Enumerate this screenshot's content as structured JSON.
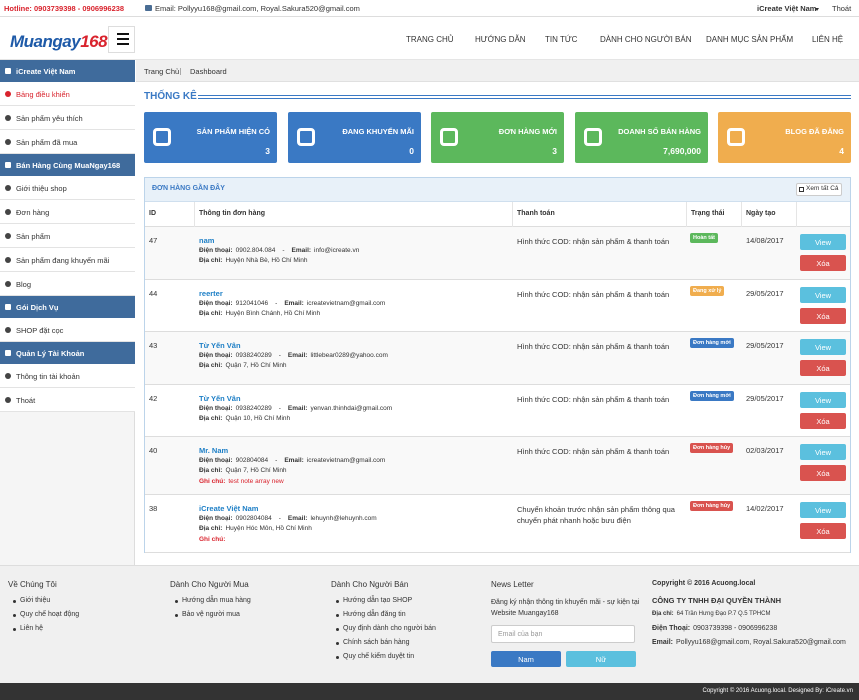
{
  "topbar": {
    "hotline": "Hotline: 0903739398 - 0906996238",
    "email": "Email: Pollyyu168@gmail.com, Royal.Sakura520@gmail.com",
    "account": "iCreate Việt Nam",
    "logout": "Thoát"
  },
  "header": {
    "logo": {
      "main": "Muangay",
      "accent": "168"
    },
    "nav": [
      "TRANG CHỦ",
      "HƯỚNG DẪN",
      "TIN TỨC",
      "DÀNH CHO NGƯỜI BÁN",
      "DANH MỤC SẢN PHẨM",
      "LIÊN HỆ"
    ]
  },
  "sidebar": [
    {
      "type": "header",
      "label": "iCreate Việt Nam"
    },
    {
      "type": "link",
      "label": "Bảng điều khiển",
      "active": true
    },
    {
      "type": "link",
      "label": "Sản phẩm yêu thích"
    },
    {
      "type": "link",
      "label": "Sản phẩm đã mua"
    },
    {
      "type": "header",
      "label": "Bán Hàng Cùng MuaNgay168"
    },
    {
      "type": "link",
      "label": "Giới thiệu shop"
    },
    {
      "type": "link",
      "label": "Đơn hàng"
    },
    {
      "type": "link",
      "label": "Sản phẩm"
    },
    {
      "type": "link",
      "label": "Sản phẩm đang khuyến mãi"
    },
    {
      "type": "link",
      "label": "Blog"
    },
    {
      "type": "header",
      "label": "Gói Dịch Vụ"
    },
    {
      "type": "link",
      "label": "SHOP đặt cọc"
    },
    {
      "type": "header",
      "label": "Quản Lý Tài Khoản"
    },
    {
      "type": "link",
      "label": "Thông tin tài khoản"
    },
    {
      "type": "link",
      "label": "Thoát"
    }
  ],
  "breadcrumb": [
    "Trang Chủ",
    "Dashboard"
  ],
  "section_title": "THỐNG KÊ",
  "stats": [
    {
      "label": "SẢN PHẨM HIỆN CÓ",
      "value": 3,
      "color": "#3a79c4"
    },
    {
      "label": "ĐANG KHUYẾN MÃI",
      "value": 0,
      "color": "#3a79c4"
    },
    {
      "label": "ĐƠN HÀNG MỚI",
      "value": 3,
      "color": "#5cb85c"
    },
    {
      "label": "DOANH SỐ BÁN HÀNG",
      "value": "7,690,000",
      "color": "#5cb85c"
    },
    {
      "label": "BLOG ĐÃ ĐĂNG",
      "value": 4,
      "color": "#f0ad4e"
    }
  ],
  "orders": {
    "title": "ĐƠN HÀNG GẦN ĐÂY",
    "view_all": "Xem tất Cả",
    "columns": [
      "ID",
      "Thông tin đơn hàng",
      "Thanh toán",
      "Trạng thái",
      "Ngày tạo"
    ],
    "labels": {
      "phone": "Điện thoại:",
      "email": "Email:",
      "address": "Địa chỉ:",
      "note": "Ghi chú:",
      "separator": "-"
    },
    "actions": {
      "view": "View",
      "delete": "Xóa"
    },
    "rows": [
      {
        "id": 47,
        "name": "nam",
        "phone": "0902.804.084",
        "email": "info@icreate.vn",
        "address": "Huyện Nhà Bè, Hồ Chí Minh",
        "payment": "Hình thức COD: nhận sản phẩm & thanh toán",
        "status": "Hoàn tất",
        "status_color": "#5cb85c",
        "date": "14/08/2017"
      },
      {
        "id": 44,
        "name": "reerter",
        "phone": "912041046",
        "email": "icreatevietnam@gmail.com",
        "address": "Huyện Bình Chánh, Hồ Chí Minh",
        "payment": "Hình thức COD: nhận sản phẩm & thanh toán",
        "status": "Đang xử lý",
        "status_color": "#f0ad4e",
        "date": "29/05/2017"
      },
      {
        "id": 43,
        "name": "Từ Yến Vân",
        "phone": "0938240289",
        "email": "littlebear0289@yahoo.com",
        "address": "Quận 7, Hồ Chí Minh",
        "payment": "Hình thức COD: nhận sản phẩm & thanh toán",
        "status": "Đơn hàng mới",
        "status_color": "#3a79c4",
        "date": "29/05/2017"
      },
      {
        "id": 42,
        "name": "Từ Yến Vân",
        "phone": "0938240289",
        "email": "yenvan.thinhdai@gmail.com",
        "address": "Quận 10, Hồ Chí Minh",
        "payment": "Hình thức COD: nhận sản phẩm & thanh toán",
        "status": "Đơn hàng mới",
        "status_color": "#3a79c4",
        "date": "29/05/2017"
      },
      {
        "id": 40,
        "name": "Mr. Nam",
        "phone": "902804084",
        "email": "icreatevietnam@gmail.com",
        "address": "Quận 7, Hồ Chí Minh",
        "note": "test note array new",
        "payment": "Hình thức COD: nhận sản phẩm & thanh toán",
        "status": "Đơn hàng hủy",
        "status_color": "#d9534f",
        "date": "02/03/2017"
      },
      {
        "id": 38,
        "name": "iCreate Việt Nam",
        "phone": "0902804084",
        "email": "lehuynh@lehuynh.com",
        "address": "Huyện Hóc Môn, Hồ Chí Minh",
        "note": null,
        "payment": "Chuyển khoản trước nhận sản phẩm thông qua chuyển phát nhanh hoặc bưu điện",
        "status": "Đơn hàng hủy",
        "status_color": "#d9534f",
        "date": "14/02/2017"
      }
    ]
  },
  "footer": {
    "columns": [
      {
        "title": "Về Chúng Tôi",
        "items": [
          "Giới thiệu",
          "Quy chế hoạt động",
          "Liên hệ"
        ]
      },
      {
        "title": "Dành Cho Người Mua",
        "items": [
          "Hướng dẫn mua hàng",
          "Bảo vệ người mua"
        ]
      },
      {
        "title": "Dành Cho Người Bán",
        "items": [
          "Hướng dẫn tạo SHOP",
          "Hướng dẫn đăng tin",
          "Quy định dành cho người bán",
          "Chính sách bán hàng",
          "Quy chế kiểm duyệt tin"
        ]
      }
    ],
    "newsletter": {
      "title": "News Letter",
      "text": "Đăng ký nhận thông tin khuyến mãi - sự kiện tại Website Muangay168",
      "placeholder": "Email của bạn",
      "buttons": [
        "Nam",
        "Nữ"
      ]
    },
    "company": {
      "copyright": "Copyright © 2016 Acuong.local",
      "name": "CÔNG TY TNHH ĐẠI QUYỀN THÀNH",
      "lines": [
        {
          "label": "Địa chỉ:",
          "value": "64 Trần Hưng Đạo P.7 Q.5 TPHCM"
        },
        {
          "label": "Điện Thoại:",
          "value": "0903739398 - 0906996238"
        },
        {
          "label": "Email:",
          "value": "Pollyyu168@gmail.com, Royal.Sakura520@gmail.com"
        }
      ]
    }
  },
  "bottom": "Copyright © 2016 Acuong.local. Designed By: iCreate.vn"
}
